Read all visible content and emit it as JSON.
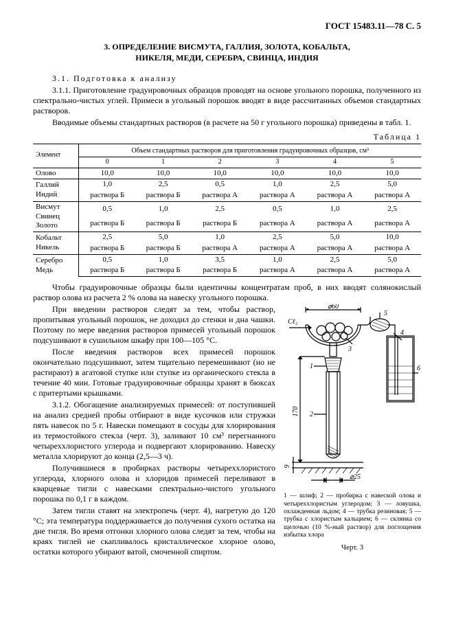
{
  "header": "ГОСТ 15483.11—78 С. 5",
  "section_title_line1": "3. ОПРЕДЕЛЕНИЕ ВИСМУТА, ГАЛЛИЯ, ЗОЛОТА, КОБАЛЬТА,",
  "section_title_line2": "НИКЕЛЯ, МЕДИ, СЕРЕБРА, СВИНЦА, ИНДИЯ",
  "sub31": "3.1. Подготовка к анализу",
  "p311": "3.1.1. Приготовление градуировочных образцов проводят на основе угольного порошка, полученного из спектрально-чистых углей. Примеси в угольный порошок вводят в виде рассчитанных объемов стандартных растворов.",
  "p_intro2": "Вводимые объемы стандартных растворов (в расчете на 50 г угольного порошка) приведены в табл. 1.",
  "table_label": "Таблица 1",
  "table": {
    "col_element": "Элемент",
    "col_header_span": "Объем стандартных растворов для приготовления градуировочных образцов, см³",
    "cols": [
      "0",
      "1",
      "2",
      "3",
      "4",
      "5"
    ],
    "rows": [
      {
        "name": "Олово",
        "vals": [
          "10,0",
          "10,0",
          "10,0",
          "10,0",
          "10,0",
          "10,0"
        ],
        "sol": [
          "",
          "",
          "",
          "",
          "",
          ""
        ]
      },
      {
        "name": "Галлий\nИндий",
        "vals": [
          "1,0",
          "2,5",
          "0,5",
          "1,0",
          "2,5",
          "5,0"
        ],
        "sol": [
          "раствора Б",
          "раствора Б",
          "раствора А",
          "раствора А",
          "раствора А",
          "раствора А"
        ]
      },
      {
        "name": "Висмут\nСвинец\nЗолото",
        "vals": [
          "0,5",
          "1,0",
          "2,5",
          "0,5",
          "1,0",
          "2,5"
        ],
        "sol": [
          "раствора Б",
          "раствора Б",
          "раствора Б",
          "раствора А",
          "раствора А",
          "раствора А"
        ]
      },
      {
        "name": "Кобальт\nНикель",
        "vals": [
          "2,5",
          "5,0",
          "1,0",
          "2,5",
          "5,0",
          "10,0"
        ],
        "sol": [
          "раствора Б",
          "раствора Б",
          "раствора А",
          "раствора А",
          "раствора А",
          "раствора А"
        ]
      },
      {
        "name": "Серебро\nМедь",
        "vals": [
          "0,5",
          "1,0",
          "3,5",
          "1,0",
          "2,5",
          "5,0"
        ],
        "sol": [
          "раствора Б",
          "раствора Б",
          "раствора Б",
          "раствора А",
          "раствора А",
          "раствора А"
        ]
      }
    ]
  },
  "p_after1": "Чтобы градуировочные образцы были идентичны концентратам проб, в них вводят солянокислый раствор олова из расчета 2 % олова на навеску угольного порошка.",
  "left_paras": [
    "При введении растворов следят за тем, чтобы раствор, пропитывая угольный порошок, не доходил до стенки и дна чашки. Поэтому по мере введения растворов примесей угольный порошок подсушивают в сушильном шкафу при 100—105 °С.",
    "После введения растворов всех примесей порошок окончательно подсушивают, затем тщательно перемешивают (но не растирают) в агатовой ступке или ступке из органического стекла в течение 40 мин. Готовые градуировочные образцы хранят в бюксах с притертыми крышками.",
    "3.1.2. Обогащение анализируемых примесей: от поступившей на анализ средней пробы отбирают в виде кусочков или стружки пять навесок по 5 г. Навески помещают в сосуды для хлорирования из термостойкого стекла (черт. 3), заливают 10 см³ перегнанного четыреххлористого углерода и подвергают хлорированию. Навеску металла хлорируют до конца (2,5—3 ч).",
    "Получившиеся в пробирках растворы четыреххлористого углерода, хлорного олова и хлоридов примесей переливают в кварцевые тигли с навесками спектрально-чистого угольного порошка по 0,1 г в каждом.",
    "Затем тигли ставят на электропечь (черт. 4), нагретую до 120 °С; эта температура поддерживается до получения сухого остатка на дне тигля. Во время отгонки хлорного олова следят за тем, чтобы на краях тиглей не скапливалось кристаллическое хлорное олово, остатки которого убирают ватой, смоченной спиртом."
  ],
  "fig": {
    "phi60": "⌀60",
    "cl2": "Cℓ₂",
    "n1": "1",
    "n2": "2",
    "n3": "3",
    "n4": "4",
    "n5": "5",
    "n6": "6",
    "dim170": "170",
    "dim9": "9",
    "phi25": "⌀25",
    "caption": "1 — шлиф; 2 — пробирка с навеской олова и четыреххлористым углеродом; 3 — ловушка, охлажденная льдом; 4 — трубка резиновая; 5 — трубка с хлористым кальцием; 6 — склянка со щелочью (10 %-ный раствор) для поглощения избытка хлора",
    "num": "Черт. 3"
  }
}
